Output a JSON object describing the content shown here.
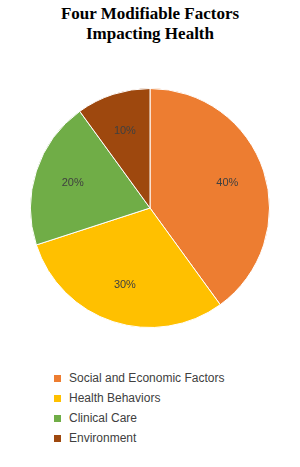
{
  "chart_data": {
    "type": "pie",
    "title": "Four Modifiable Factors Impacting Health",
    "categories": [
      "Social and Economic Factors",
      "Health Behaviors",
      "Clinical Care",
      "Environment"
    ],
    "values": [
      40,
      30,
      20,
      10
    ],
    "value_labels": [
      "40%",
      "30%",
      "20%",
      "10%"
    ],
    "colors": [
      "#ed7d31",
      "#ffc000",
      "#70ad47",
      "#9e480e"
    ],
    "data_labels": true,
    "legend": "bottom"
  }
}
